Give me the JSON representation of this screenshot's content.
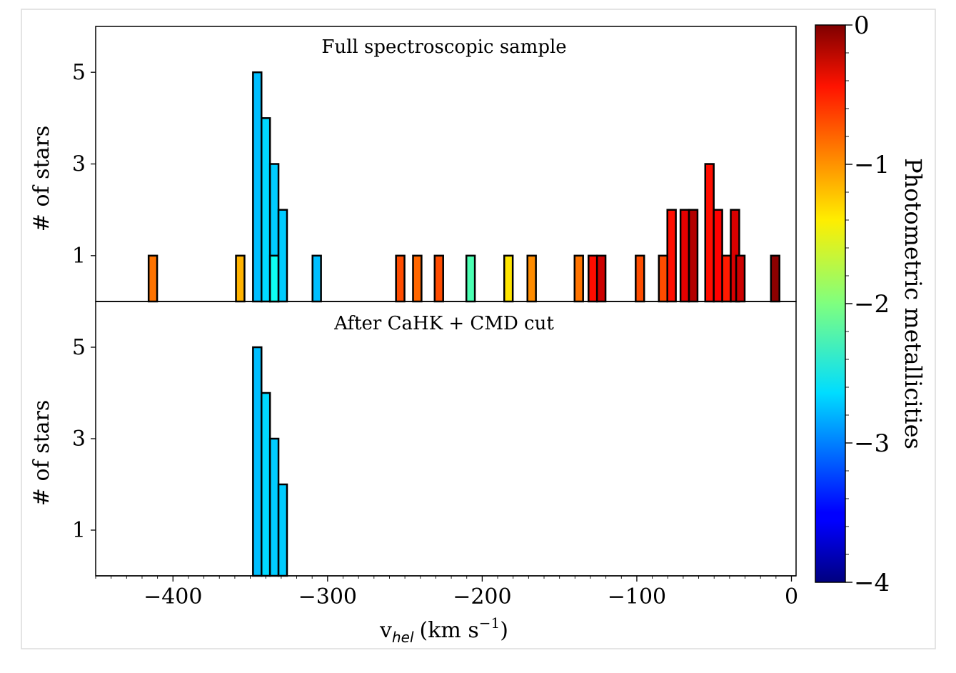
{
  "chart_data": {
    "type": "bar",
    "xlabel_main": "v",
    "xlabel_sub": "hel",
    "xlabel_unit": "(km s",
    "xlabel_sup": "−1",
    "xlabel_close": ")",
    "xlim": [
      -450,
      3
    ],
    "x_ticks": [
      -400,
      -300,
      -200,
      -100,
      0
    ],
    "x_tick_labels": [
      "−400",
      "−300",
      "−200",
      "−100",
      "0"
    ],
    "grid": false,
    "panels": [
      {
        "title": "Full spectroscopic sample",
        "ylabel": "# of stars",
        "ylim": [
          0,
          6
        ],
        "y_ticks": [
          1,
          3,
          5
        ],
        "y_tick_labels": [
          "1",
          "3",
          "5"
        ],
        "bin_width": 5.5,
        "bars": [
          {
            "x": -413.0,
            "count": 1,
            "feh": -0.95
          },
          {
            "x": -356.5,
            "count": 1,
            "feh": -1.2
          },
          {
            "x": -345.5,
            "count": 5,
            "feh": -2.75
          },
          {
            "x": -340.0,
            "count": 4,
            "feh": -2.65
          },
          {
            "x": -334.5,
            "count": 3,
            "feh": -2.7
          },
          {
            "x": -334.5,
            "count": 1,
            "feh": -2.45
          },
          {
            "x": -329.0,
            "count": 2,
            "feh": -2.7
          },
          {
            "x": -307.0,
            "count": 1,
            "feh": -2.75
          },
          {
            "x": -253.0,
            "count": 1,
            "feh": -0.8
          },
          {
            "x": -242.0,
            "count": 1,
            "feh": -0.9
          },
          {
            "x": -228.0,
            "count": 1,
            "feh": -0.8
          },
          {
            "x": -207.5,
            "count": 1,
            "feh": -2.2
          },
          {
            "x": -183.0,
            "count": 1,
            "feh": -1.4
          },
          {
            "x": -168.0,
            "count": 1,
            "feh": -1.05
          },
          {
            "x": -137.5,
            "count": 1,
            "feh": -0.95
          },
          {
            "x": -128.5,
            "count": 1,
            "feh": -0.55
          },
          {
            "x": -123.0,
            "count": 1,
            "feh": -0.3
          },
          {
            "x": -98.0,
            "count": 1,
            "feh": -0.8
          },
          {
            "x": -83.0,
            "count": 1,
            "feh": -0.8
          },
          {
            "x": -77.5,
            "count": 2,
            "feh": -0.55
          },
          {
            "x": -69.0,
            "count": 2,
            "feh": -0.4
          },
          {
            "x": -63.5,
            "count": 2,
            "feh": -0.2
          },
          {
            "x": -53.0,
            "count": 3,
            "feh": -0.55
          },
          {
            "x": -47.5,
            "count": 2,
            "feh": -0.5
          },
          {
            "x": -42.0,
            "count": 1,
            "feh": -0.6
          },
          {
            "x": -36.5,
            "count": 2,
            "feh": -0.35
          },
          {
            "x": -33.0,
            "count": 1,
            "feh": -0.3
          },
          {
            "x": -10.5,
            "count": 1,
            "feh": -0.05
          }
        ]
      },
      {
        "title": "After CaHK + CMD cut",
        "ylabel": "# of stars",
        "ylim": [
          0,
          6
        ],
        "y_ticks": [
          1,
          3,
          5
        ],
        "y_tick_labels": [
          "1",
          "3",
          "5"
        ],
        "bin_width": 5.5,
        "bars": [
          {
            "x": -345.5,
            "count": 5,
            "feh": -2.75
          },
          {
            "x": -340.0,
            "count": 4,
            "feh": -2.65
          },
          {
            "x": -334.5,
            "count": 3,
            "feh": -2.7
          },
          {
            "x": -329.0,
            "count": 2,
            "feh": -2.7
          }
        ]
      }
    ],
    "colorbar": {
      "label": "Photometric metallicities",
      "colormap": "jet",
      "range": [
        -4,
        0
      ],
      "ticks": [
        0,
        -1,
        -2,
        -3,
        -4
      ],
      "tick_labels": [
        "0",
        "−1",
        "−2",
        "−3",
        "−4"
      ]
    }
  }
}
